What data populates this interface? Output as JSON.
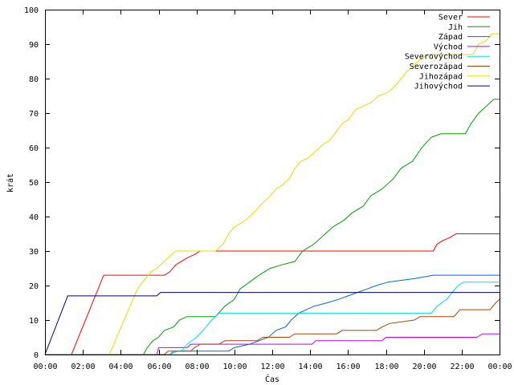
{
  "chart_data": {
    "type": "line",
    "xlabel": "Čas",
    "ylabel": "krát",
    "xlim": [
      0,
      24
    ],
    "ylim": [
      0,
      100
    ],
    "grid": false,
    "legend_position": "top-right",
    "x_ticks": [
      {
        "value": 0,
        "label": "00:00"
      },
      {
        "value": 2,
        "label": "02:00"
      },
      {
        "value": 4,
        "label": "04:00"
      },
      {
        "value": 6,
        "label": "06:00"
      },
      {
        "value": 8,
        "label": "08:00"
      },
      {
        "value": 10,
        "label": "10:00"
      },
      {
        "value": 12,
        "label": "12:00"
      },
      {
        "value": 14,
        "label": "14:00"
      },
      {
        "value": 16,
        "label": "16:00"
      },
      {
        "value": 18,
        "label": "18:00"
      },
      {
        "value": 20,
        "label": "20:00"
      },
      {
        "value": 22,
        "label": "22:00"
      },
      {
        "value": 24,
        "label": "00:00"
      }
    ],
    "y_ticks": [
      0,
      10,
      20,
      30,
      40,
      50,
      60,
      70,
      80,
      90,
      100
    ],
    "series": [
      {
        "name": "Sever",
        "color": "#ff0000",
        "points": [
          [
            1.4,
            0
          ],
          [
            3.1,
            23
          ],
          [
            6.3,
            23
          ],
          [
            6.6,
            24
          ],
          [
            6.9,
            26
          ],
          [
            7.2,
            27
          ],
          [
            7.5,
            28
          ],
          [
            7.9,
            29
          ],
          [
            8.2,
            30
          ],
          [
            20.5,
            30
          ],
          [
            20.7,
            32
          ],
          [
            21.0,
            33
          ],
          [
            21.4,
            34
          ],
          [
            21.7,
            35
          ],
          [
            24,
            35
          ]
        ]
      },
      {
        "name": "Jih",
        "color": "#00a000",
        "points": [
          [
            0,
            0
          ],
          [
            5.2,
            0
          ],
          [
            5.4,
            2
          ],
          [
            5.7,
            4
          ],
          [
            6.0,
            5
          ],
          [
            6.3,
            7
          ],
          [
            6.8,
            8
          ],
          [
            7.1,
            10
          ],
          [
            7.5,
            11
          ],
          [
            9.0,
            11
          ],
          [
            9.5,
            14
          ],
          [
            10.0,
            16
          ],
          [
            10.3,
            19
          ],
          [
            10.8,
            21
          ],
          [
            11.3,
            23
          ],
          [
            11.9,
            25
          ],
          [
            12.5,
            26
          ],
          [
            13.2,
            27
          ],
          [
            13.6,
            30
          ],
          [
            14.2,
            32
          ],
          [
            14.8,
            35
          ],
          [
            15.2,
            37
          ],
          [
            15.8,
            39
          ],
          [
            16.2,
            41
          ],
          [
            16.8,
            43
          ],
          [
            17.2,
            46
          ],
          [
            17.8,
            48
          ],
          [
            18.4,
            51
          ],
          [
            18.8,
            54
          ],
          [
            19.4,
            56
          ],
          [
            19.9,
            60
          ],
          [
            20.4,
            63
          ],
          [
            20.9,
            64
          ],
          [
            22.2,
            64
          ],
          [
            22.5,
            67
          ],
          [
            22.9,
            70
          ],
          [
            23.3,
            72
          ],
          [
            23.7,
            74
          ],
          [
            24,
            74
          ]
        ]
      },
      {
        "name": "Západ",
        "color": "#0060ff",
        "points": [
          [
            0,
            0
          ],
          [
            6.6,
            0
          ],
          [
            6.8,
            1
          ],
          [
            9.7,
            1
          ],
          [
            10.0,
            2
          ],
          [
            10.8,
            3
          ],
          [
            11.3,
            4
          ],
          [
            11.8,
            5
          ],
          [
            12.2,
            7
          ],
          [
            12.7,
            8
          ],
          [
            13.0,
            10
          ],
          [
            13.4,
            12
          ],
          [
            13.8,
            13
          ],
          [
            14.2,
            14
          ],
          [
            14.9,
            15
          ],
          [
            15.5,
            16
          ],
          [
            16.0,
            17
          ],
          [
            16.5,
            18
          ],
          [
            17.0,
            19
          ],
          [
            17.5,
            20
          ],
          [
            18.1,
            21
          ],
          [
            19.5,
            22
          ],
          [
            20.5,
            23
          ],
          [
            24,
            23
          ]
        ]
      },
      {
        "name": "Východ",
        "color": "#c000ff",
        "points": [
          [
            0,
            0
          ],
          [
            5.9,
            0
          ],
          [
            6.0,
            2
          ],
          [
            7.5,
            2
          ],
          [
            7.7,
            3
          ],
          [
            9.9,
            3
          ],
          [
            10.3,
            3
          ],
          [
            14.1,
            3
          ],
          [
            14.3,
            4
          ],
          [
            17.8,
            4
          ],
          [
            18.0,
            5
          ],
          [
            22.8,
            5
          ],
          [
            23.1,
            6
          ],
          [
            24,
            6
          ]
        ]
      },
      {
        "name": "Severovýchod",
        "color": "#00e0e0",
        "points": [
          [
            0,
            0
          ],
          [
            6.6,
            0
          ],
          [
            7.0,
            1
          ],
          [
            7.2,
            1
          ],
          [
            7.5,
            3
          ],
          [
            8.0,
            5
          ],
          [
            8.5,
            8
          ],
          [
            8.8,
            10
          ],
          [
            9.2,
            12
          ],
          [
            20.4,
            12
          ],
          [
            20.7,
            14
          ],
          [
            21.2,
            16
          ],
          [
            21.5,
            18
          ],
          [
            21.8,
            20
          ],
          [
            22.1,
            21
          ],
          [
            24,
            21
          ]
        ]
      },
      {
        "name": "Severozápad",
        "color": "#b04000",
        "points": [
          [
            0,
            0
          ],
          [
            6.3,
            0
          ],
          [
            6.5,
            1
          ],
          [
            7.7,
            1
          ],
          [
            7.9,
            2
          ],
          [
            8.2,
            3
          ],
          [
            9.2,
            3
          ],
          [
            9.5,
            4
          ],
          [
            11.2,
            4
          ],
          [
            11.5,
            5
          ],
          [
            12.9,
            5
          ],
          [
            13.2,
            6
          ],
          [
            15.4,
            6
          ],
          [
            15.7,
            7
          ],
          [
            17.5,
            7
          ],
          [
            17.8,
            8
          ],
          [
            18.2,
            9
          ],
          [
            19.5,
            10
          ],
          [
            19.8,
            11
          ],
          [
            21.6,
            11
          ],
          [
            21.9,
            13
          ],
          [
            23.5,
            13
          ],
          [
            23.8,
            15
          ],
          [
            24,
            16
          ]
        ]
      },
      {
        "name": "Jihozápad",
        "color": "#e0e000",
        "points": [
          [
            3.4,
            0
          ],
          [
            4.8,
            18
          ],
          [
            5.0,
            20
          ],
          [
            5.3,
            22
          ],
          [
            5.6,
            24
          ],
          [
            5.9,
            25
          ],
          [
            6.3,
            27
          ],
          [
            6.7,
            29
          ],
          [
            6.9,
            30
          ],
          [
            9.0,
            30
          ],
          [
            9.4,
            32
          ],
          [
            9.7,
            35
          ],
          [
            10.0,
            37
          ],
          [
            10.3,
            38
          ],
          [
            10.6,
            39
          ],
          [
            11.0,
            41
          ],
          [
            11.5,
            44
          ],
          [
            11.9,
            46
          ],
          [
            12.2,
            48
          ],
          [
            12.5,
            49
          ],
          [
            12.9,
            51
          ],
          [
            13.2,
            54
          ],
          [
            13.5,
            56
          ],
          [
            13.9,
            57
          ],
          [
            14.3,
            59
          ],
          [
            14.7,
            61
          ],
          [
            15.0,
            62
          ],
          [
            15.3,
            64
          ],
          [
            15.7,
            67
          ],
          [
            16.0,
            68
          ],
          [
            16.4,
            71
          ],
          [
            16.8,
            72
          ],
          [
            17.2,
            73
          ],
          [
            17.6,
            75
          ],
          [
            18.1,
            76
          ],
          [
            18.5,
            78
          ],
          [
            18.8,
            80
          ],
          [
            19.1,
            82
          ],
          [
            19.5,
            84
          ],
          [
            19.9,
            86
          ],
          [
            20.3,
            87
          ],
          [
            22.6,
            87
          ],
          [
            22.9,
            90
          ],
          [
            23.3,
            91
          ],
          [
            23.6,
            93
          ],
          [
            24,
            93
          ]
        ]
      },
      {
        "name": "Jihovýchod",
        "color": "#000080",
        "points": [
          [
            0,
            0
          ],
          [
            1.2,
            17
          ],
          [
            5.9,
            17
          ],
          [
            6.1,
            18
          ],
          [
            24,
            18
          ]
        ]
      }
    ]
  }
}
